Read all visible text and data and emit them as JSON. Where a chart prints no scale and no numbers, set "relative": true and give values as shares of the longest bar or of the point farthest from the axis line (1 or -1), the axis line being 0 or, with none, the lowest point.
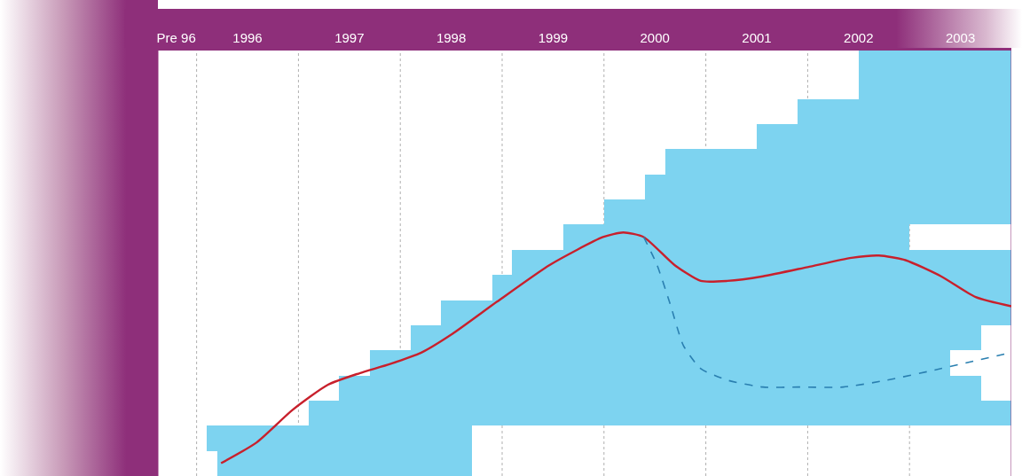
{
  "chart_data": [
    {
      "type": "bar",
      "orientation": "horizontal",
      "categories": [
        null,
        null,
        null,
        null,
        null,
        null,
        null,
        null,
        null,
        null,
        null,
        null,
        null,
        null,
        null,
        null,
        null
      ],
      "series": [
        {
          "color": "#7dd3f0",
          "base": [
            2002.5,
            2002.5,
            2001.9,
            2001.5,
            2000.6,
            2000.4,
            2000.0,
            1999.6,
            1999.1,
            1998.9,
            1998.4,
            1998.1,
            1997.7,
            1997.4,
            1997.1,
            1996.1,
            1996.2
          ],
          "values": [
            1.5,
            1.5,
            2.1,
            2.5,
            3.4,
            3.6,
            4.0,
            3.4,
            4.9,
            5.1,
            5.6,
            5.6,
            5.7,
            6.3,
            6.9,
            2.6,
            2.5
          ]
        }
      ],
      "xlim": [
        1995.62,
        2004.0
      ],
      "xticks": [
        {
          "value": 1995.8,
          "label": "Pre 96"
        },
        {
          "value": 1996.5,
          "label": "1996"
        },
        {
          "value": 1997.5,
          "label": "1997"
        },
        {
          "value": 1998.5,
          "label": "1998"
        },
        {
          "value": 1999.5,
          "label": "1999"
        },
        {
          "value": 2000.5,
          "label": "2000"
        },
        {
          "value": 2001.5,
          "label": "2001"
        },
        {
          "value": 2002.5,
          "label": "2002"
        },
        {
          "value": 2003.5,
          "label": "2003"
        }
      ],
      "tick_labels": "x",
      "grid": false,
      "ref_lines": [
        {
          "axis": "x",
          "value": 1996,
          "color": "#b0b0b0",
          "line_style": "dotted"
        },
        {
          "axis": "x",
          "value": 1997,
          "color": "#b0b0b0",
          "line_style": "dotted"
        },
        {
          "axis": "x",
          "value": 1998,
          "color": "#b0b0b0",
          "line_style": "dotted"
        },
        {
          "axis": "x",
          "value": 1999,
          "color": "#b0b0b0",
          "line_style": "dotted"
        },
        {
          "axis": "x",
          "value": 2000,
          "color": "#b0b0b0",
          "line_style": "dotted"
        },
        {
          "axis": "x",
          "value": 2001,
          "color": "#b0b0b0",
          "line_style": "dotted"
        },
        {
          "axis": "x",
          "value": 2002,
          "color": "#b0b0b0",
          "line_style": "dotted"
        },
        {
          "axis": "x",
          "value": 2003,
          "color": "#b0b0b0",
          "line_style": "dotted"
        }
      ]
    },
    {
      "type": "line",
      "relative": true,
      "xlim": [
        1995.62,
        2004.0
      ],
      "tick_labels": false,
      "series": [
        {
          "color": "#c8202c",
          "line_style": "solid",
          "x": [
            1996.24,
            1996.59,
            1996.94,
            1997.29,
            1997.6,
            1997.9,
            1998.21,
            1998.51,
            1998.95,
            1999.47,
            1999.99,
            2000.19,
            2000.39,
            2000.69,
            2000.95,
            2001.21,
            2001.56,
            2002.0,
            2002.43,
            2002.7,
            2002.96,
            2003.31,
            2003.65,
            2004.0
          ],
          "values": [
            0,
            0.09,
            0.23,
            0.34,
            0.39,
            0.43,
            0.48,
            0.56,
            0.7,
            0.86,
            0.98,
            1,
            0.98,
            0.86,
            0.79,
            0.79,
            0.81,
            0.85,
            0.89,
            0.9,
            0.88,
            0.81,
            0.72,
            0.68
          ]
        },
        {
          "color": "#2a7fb0",
          "line_style": "dashed",
          "x": [
            2000.39,
            2000.52,
            2000.65,
            2000.78,
            2000.95,
            2001.21,
            2001.56,
            2001.91,
            2002.35,
            2002.78,
            2003.31,
            2004.0
          ],
          "values": [
            0.98,
            0.86,
            0.69,
            0.51,
            0.41,
            0.36,
            0.33,
            0.33,
            0.33,
            0.36,
            0.41,
            0.48
          ]
        }
      ]
    }
  ]
}
